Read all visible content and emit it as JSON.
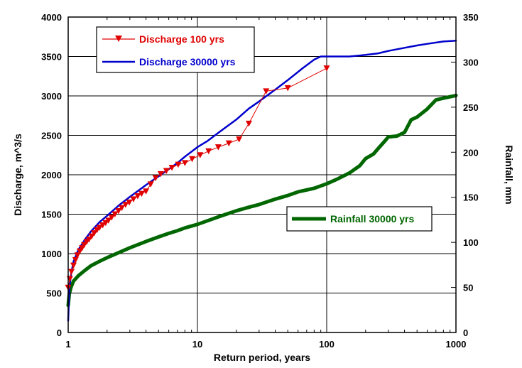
{
  "chart_data": {
    "type": "line",
    "x_scale": "log",
    "xlabel": "Return period, years",
    "ylabel_left": "Discharge, m^3/s",
    "ylabel_right": "Rainfall, mm",
    "xlim": [
      1,
      1000
    ],
    "ylim_left": [
      0,
      4000
    ],
    "ylim_right": [
      0,
      350
    ],
    "x_ticks": [
      "1",
      "10",
      "100",
      "1000"
    ],
    "y_ticks_left": [
      "0",
      "500",
      "1000",
      "1500",
      "2000",
      "2500",
      "3000",
      "3500",
      "4000"
    ],
    "y_ticks_right": [
      "0",
      "50",
      "100",
      "150",
      "200",
      "250",
      "300",
      "350"
    ],
    "grid": true,
    "series": [
      {
        "name": "Discharge 100 yrs",
        "axis": "left",
        "color": "#e00000",
        "marker": "triangle-down",
        "x": [
          1.0,
          1.03,
          1.06,
          1.1,
          1.14,
          1.18,
          1.23,
          1.28,
          1.33,
          1.39,
          1.45,
          1.52,
          1.59,
          1.67,
          1.75,
          1.85,
          1.95,
          2.05,
          2.17,
          2.3,
          2.45,
          2.6,
          2.78,
          2.97,
          3.2,
          3.45,
          3.7,
          4.0,
          4.35,
          4.75,
          5.2,
          5.75,
          6.35,
          7.1,
          8.0,
          9.1,
          10.5,
          12.2,
          14.5,
          17.5,
          21.0,
          25.0,
          34.0,
          50.0,
          100.0
        ],
        "y": [
          570,
          680,
          770,
          850,
          920,
          980,
          1030,
          1070,
          1110,
          1150,
          1180,
          1220,
          1260,
          1300,
          1330,
          1360,
          1390,
          1420,
          1460,
          1500,
          1540,
          1580,
          1620,
          1650,
          1690,
          1730,
          1760,
          1790,
          1880,
          1960,
          2010,
          2050,
          2090,
          2130,
          2150,
          2200,
          2250,
          2300,
          2350,
          2400,
          2450,
          2650,
          3060,
          3100,
          3350
        ]
      },
      {
        "name": "Discharge 30000 yrs",
        "axis": "left",
        "color": "#0000cc",
        "x": [
          1.0,
          1.02,
          1.05,
          1.1,
          1.2,
          1.35,
          1.5,
          1.75,
          2.0,
          2.5,
          3.0,
          4.0,
          5.0,
          6.0,
          7.0,
          8.0,
          10.0,
          12.0,
          15.0,
          20.0,
          25.0,
          30.0,
          40.0,
          50.0,
          65.0,
          80.0,
          90.0,
          120.0,
          150.0,
          200.0,
          250.0,
          300.0,
          400.0,
          500.0,
          600.0,
          800.0,
          1000.0
        ],
        "y": [
          150,
          550,
          730,
          900,
          1050,
          1180,
          1280,
          1400,
          1480,
          1620,
          1720,
          1870,
          1980,
          2070,
          2150,
          2230,
          2350,
          2430,
          2550,
          2700,
          2840,
          2930,
          3080,
          3200,
          3350,
          3460,
          3500,
          3500,
          3500,
          3520,
          3540,
          3570,
          3610,
          3640,
          3660,
          3690,
          3700
        ]
      },
      {
        "name": "Rainfall 30000 yrs",
        "axis": "right",
        "color": "#006600",
        "x": [
          1.0,
          1.02,
          1.05,
          1.1,
          1.2,
          1.35,
          1.5,
          1.75,
          2.0,
          2.5,
          3.0,
          4.0,
          5.0,
          6.0,
          7.0,
          8.0,
          10.0,
          12.0,
          15.0,
          20.0,
          25.0,
          30.0,
          40.0,
          50.0,
          60.0,
          80.0,
          100.0,
          120.0,
          150.0,
          180.0,
          200.0,
          230.0,
          250.0,
          280.0,
          300.0,
          350.0,
          400.0,
          450.0,
          500.0,
          600.0,
          700.0,
          800.0,
          1000.0
        ],
        "y": [
          30,
          43,
          50,
          57,
          63,
          69,
          74,
          79,
          83,
          89,
          94,
          101,
          106,
          110,
          113,
          116,
          120,
          124,
          129,
          135,
          139,
          142,
          148,
          152,
          156,
          160,
          165,
          170,
          177,
          185,
          193,
          198,
          204,
          212,
          217,
          218,
          222,
          236,
          239,
          248,
          258,
          260,
          263
        ]
      }
    ],
    "legend": [
      {
        "label": "Discharge 100 yrs",
        "position": "top-left"
      },
      {
        "label": "Discharge 30000 yrs",
        "position": "top-left"
      },
      {
        "label": "Rainfall 30000 yrs",
        "position": "center-right"
      }
    ]
  }
}
